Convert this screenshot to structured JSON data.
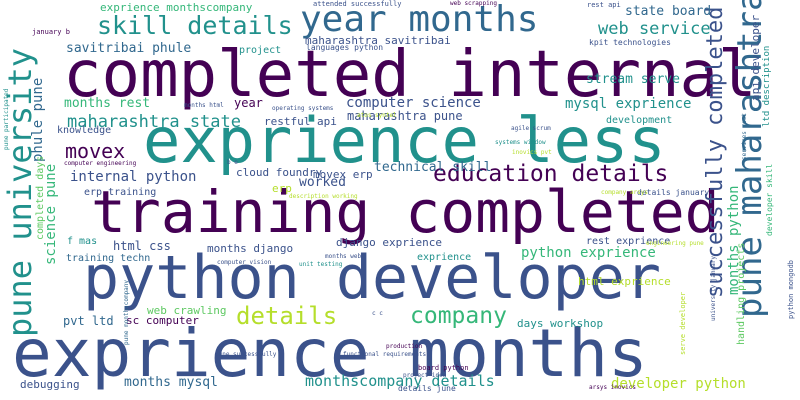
{
  "palette": {
    "background": "#ffffff",
    "dark_purple": "#440154",
    "indigo": "#3b528b",
    "teal": "#21918c",
    "green": "#5ec962",
    "yellow_green": "#b5de2b",
    "blue": "#31688e",
    "sea_green": "#35b779"
  },
  "words": [
    {
      "text": "completed internal"
    },
    {
      "text": "exprience less"
    },
    {
      "text": "training completed"
    },
    {
      "text": "python developer"
    },
    {
      "text": "exprience months"
    },
    {
      "text": "year months"
    },
    {
      "text": "pune university"
    },
    {
      "text": "pune maharashtra"
    },
    {
      "text": "successfully completed"
    },
    {
      "text": "education details"
    },
    {
      "text": "skill details"
    },
    {
      "text": "details"
    },
    {
      "text": "company"
    },
    {
      "text": "movex"
    },
    {
      "text": "maharashtra state"
    },
    {
      "text": "web service"
    },
    {
      "text": "exprience monthscompany"
    },
    {
      "text": "state board"
    },
    {
      "text": "savitribai phule"
    },
    {
      "text": "maharashtra savitribai"
    },
    {
      "text": "computer science"
    },
    {
      "text": "mysql exprience"
    },
    {
      "text": "months rest"
    },
    {
      "text": "restful api"
    },
    {
      "text": "internal python"
    },
    {
      "text": "worked"
    },
    {
      "text": "technical skill"
    },
    {
      "text": "python exprience"
    },
    {
      "text": "django exprience"
    },
    {
      "text": "months mysql"
    },
    {
      "text": "monthscompany details"
    },
    {
      "text": "developer python"
    },
    {
      "text": "months python"
    },
    {
      "text": "html css"
    },
    {
      "text": "months django"
    },
    {
      "text": "days workshop"
    },
    {
      "text": "pvt ltd"
    },
    {
      "text": "sc computer"
    },
    {
      "text": "web crawling"
    },
    {
      "text": "cloud foundry"
    },
    {
      "text": "movex erp"
    },
    {
      "text": "erp training"
    },
    {
      "text": "stream serve"
    },
    {
      "text": "phule pune"
    },
    {
      "text": "science pune"
    },
    {
      "text": "year"
    },
    {
      "text": "maharashtra pune"
    },
    {
      "text": "knowledge"
    },
    {
      "text": "development"
    },
    {
      "text": "html exprience"
    },
    {
      "text": "rest exprience"
    },
    {
      "text": "debugging"
    },
    {
      "text": "exprience"
    },
    {
      "text": "training techn"
    },
    {
      "text": "f mas"
    },
    {
      "text": "completed days"
    },
    {
      "text": "api developer"
    },
    {
      "text": "ltd description"
    },
    {
      "text": "project"
    },
    {
      "text": "languages python"
    },
    {
      "text": "kpit technologies"
    },
    {
      "text": "january b"
    },
    {
      "text": "attended successfully"
    },
    {
      "text": "web scrapping"
    },
    {
      "text": "rest api"
    },
    {
      "text": "agile scrum"
    },
    {
      "text": "details january"
    },
    {
      "text": "board python"
    },
    {
      "text": "details june"
    },
    {
      "text": "pune successfully"
    },
    {
      "text": "functional requirements"
    },
    {
      "text": "computer vision"
    },
    {
      "text": "unit testing"
    },
    {
      "text": "months web"
    },
    {
      "text": "computer engineering"
    },
    {
      "text": "systems window"
    },
    {
      "text": "operating systems"
    },
    {
      "text": "erp"
    },
    {
      "text": "handling projects"
    },
    {
      "text": "python mongodb"
    },
    {
      "text": "serve developer"
    },
    {
      "text": "developer skill"
    },
    {
      "text": "university january"
    },
    {
      "text": "pune participated"
    },
    {
      "text": "months html"
    },
    {
      "text": "arsys inovics"
    },
    {
      "text": "project idea"
    },
    {
      "text": "c c"
    },
    {
      "text": "services rest"
    },
    {
      "text": "b e"
    },
    {
      "text": "description working"
    },
    {
      "text": "engineering pune"
    },
    {
      "text": "company arsys"
    },
    {
      "text": "inovics pvt"
    },
    {
      "text": "atos syntel"
    },
    {
      "text": "pune monthscompany"
    },
    {
      "text": "production"
    }
  ]
}
